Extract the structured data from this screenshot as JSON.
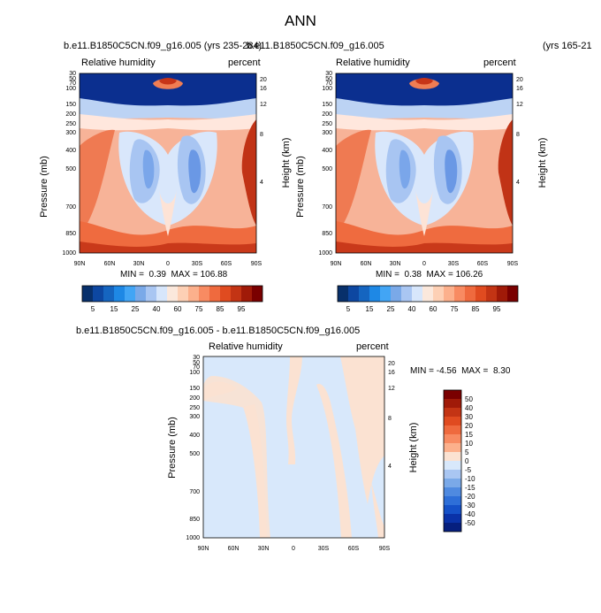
{
  "page": {
    "main_title": "ANN",
    "bottom_case_title": "b.e11.B1850C5CN.f09_g16.005 - b.e11.B1850C5CN.f09_g16.005"
  },
  "panels": {
    "left": {
      "case_title": "b.e11.B1850C5CN.f09_g16.005 (yrs 235-284)",
      "variable": "Relative humidity",
      "units": "percent",
      "ylabel_left": "Pressure (mb)",
      "ylabel_right": "Height (km)",
      "min_label": "MIN =",
      "min_value": "0.39",
      "max_label": "MAX =",
      "max_value": "106.88"
    },
    "right": {
      "case_title": "b.e11.B1850C5CN.f09_g16.005",
      "case_title_years": "(yrs 165-21",
      "variable": "Relative humidity",
      "units": "percent",
      "ylabel_left": "Pressure (mb)",
      "ylabel_right": "Height (km)",
      "min_label": "MIN =",
      "min_value": "0.38",
      "max_label": "MAX =",
      "max_value": "106.26"
    },
    "diff": {
      "variable": "Relative humidity",
      "units": "percent",
      "ylabel_left": "Pressure (mb)",
      "ylabel_right": "Height (km)",
      "min_label": "MIN =",
      "min_value": "-4.56",
      "max_label": "MAX =",
      "max_value": "8.30"
    }
  },
  "chart_data": [
    {
      "type": "heatmap",
      "panel": "left",
      "x_ticks": [
        "90N",
        "60N",
        "30N",
        "0",
        "30S",
        "60S",
        "90S"
      ],
      "y_ticks_pressure": [
        "30",
        "50",
        "70",
        "100",
        "150",
        "200",
        "250",
        "300",
        "400",
        "500",
        "700",
        "850",
        "1000"
      ],
      "y_ticks_height": [
        "20",
        "16",
        "12",
        "8",
        "4"
      ],
      "colorbar": {
        "labels": [
          "5",
          "15",
          "25",
          "40",
          "60",
          "75",
          "85",
          "95"
        ],
        "colors": [
          "#08306b",
          "#0d47a1",
          "#1565c0",
          "#1e88e5",
          "#42a5f5",
          "#7aa9e8",
          "#a9c6f2",
          "#d7e6fb",
          "#fbe8dc",
          "#fdd0b5",
          "#fcb08c",
          "#f88b62",
          "#ef6a3e",
          "#e04b20",
          "#c33414",
          "#a01a08",
          "#7a0000"
        ]
      },
      "min": 0.39,
      "max": 106.88
    },
    {
      "type": "heatmap",
      "panel": "right",
      "x_ticks": [
        "90N",
        "60N",
        "30N",
        "0",
        "30S",
        "60S",
        "90S"
      ],
      "y_ticks_pressure": [
        "30",
        "50",
        "70",
        "100",
        "150",
        "200",
        "250",
        "300",
        "400",
        "500",
        "700",
        "850",
        "1000"
      ],
      "y_ticks_height": [
        "20",
        "16",
        "12",
        "8",
        "4"
      ],
      "colorbar": {
        "labels": [
          "5",
          "15",
          "25",
          "40",
          "60",
          "75",
          "85",
          "95"
        ]
      },
      "min": 0.38,
      "max": 106.26
    },
    {
      "type": "heatmap",
      "panel": "difference",
      "x_ticks": [
        "90N",
        "60N",
        "30N",
        "0",
        "30S",
        "60S",
        "90S"
      ],
      "y_ticks_pressure": [
        "30",
        "50",
        "70",
        "100",
        "150",
        "200",
        "250",
        "300",
        "400",
        "500",
        "700",
        "850",
        "1000"
      ],
      "y_ticks_height": [
        "20",
        "16",
        "12",
        "8",
        "4"
      ],
      "colorbar": {
        "labels": [
          "50",
          "40",
          "30",
          "20",
          "15",
          "10",
          "5",
          "0",
          "-5",
          "-10",
          "-15",
          "-20",
          "-30",
          "-40",
          "-50"
        ],
        "colors": [
          "#7a0000",
          "#a01a08",
          "#c33414",
          "#e04b20",
          "#ef6a3e",
          "#f88b62",
          "#fcb08c",
          "#fbe2d2",
          "#d8e8fb",
          "#a9c6f2",
          "#7aa9e8",
          "#4f8ae0",
          "#2e6fd8",
          "#1551c8",
          "#0a32a8",
          "#061f7e"
        ]
      },
      "min": -4.56,
      "max": 8.3
    }
  ]
}
